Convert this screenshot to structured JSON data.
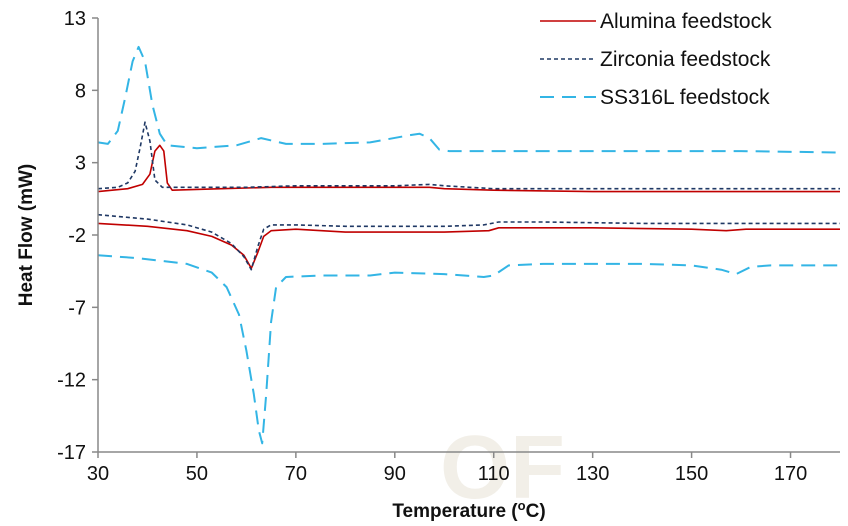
{
  "chart_data": {
    "type": "line",
    "title": "",
    "xlabel": "Temperature (°C)",
    "xlabel_main": "Temperature (",
    "xlabel_sup": "o",
    "xlabel_end": "C)",
    "ylabel": "Heat Flow (mW)",
    "xlim": [
      30,
      180
    ],
    "ylim": [
      -17,
      13
    ],
    "x_ticks": [
      30,
      50,
      70,
      90,
      110,
      130,
      150,
      170
    ],
    "y_ticks": [
      13,
      8,
      3,
      -2,
      -7,
      -12,
      -17
    ],
    "grid": false,
    "legend_position": "top-right",
    "watermark_text": "OF",
    "series": [
      {
        "name": "Alumina feedstock",
        "color": "#c00000",
        "dash": "solid",
        "segments": [
          [
            [
              30,
              1.0
            ],
            [
              36,
              1.2
            ],
            [
              39,
              1.5
            ],
            [
              40.5,
              2.2
            ],
            [
              41.5,
              3.8
            ],
            [
              42.5,
              4.2
            ],
            [
              43.3,
              3.8
            ],
            [
              44,
              1.6
            ],
            [
              45,
              1.1
            ],
            [
              55,
              1.2
            ],
            [
              65,
              1.3
            ],
            [
              75,
              1.3
            ],
            [
              90,
              1.3
            ],
            [
              97,
              1.3
            ],
            [
              100,
              1.2
            ],
            [
              110,
              1.1
            ],
            [
              130,
              1.0
            ],
            [
              150,
              1.0
            ],
            [
              180,
              1.0
            ]
          ],
          [
            [
              30,
              -1.2
            ],
            [
              40,
              -1.4
            ],
            [
              48,
              -1.7
            ],
            [
              53,
              -2.1
            ],
            [
              57,
              -2.7
            ],
            [
              59.5,
              -3.4
            ],
            [
              61,
              -4.3
            ],
            [
              62.3,
              -3.2
            ],
            [
              63.5,
              -2.1
            ],
            [
              65,
              -1.7
            ],
            [
              70,
              -1.6
            ],
            [
              80,
              -1.8
            ],
            [
              90,
              -1.8
            ],
            [
              100,
              -1.8
            ],
            [
              109,
              -1.7
            ],
            [
              111,
              -1.5
            ],
            [
              120,
              -1.5
            ],
            [
              130,
              -1.5
            ],
            [
              150,
              -1.6
            ],
            [
              157,
              -1.7
            ],
            [
              161,
              -1.6
            ],
            [
              165,
              -1.6
            ],
            [
              180,
              -1.6
            ]
          ]
        ]
      },
      {
        "name": "Zirconia feedstock",
        "color": "#1f3864",
        "dash": "dotted",
        "segments": [
          [
            [
              30,
              1.2
            ],
            [
              34,
              1.3
            ],
            [
              36,
              1.6
            ],
            [
              37.5,
              2.4
            ],
            [
              38.5,
              4.0
            ],
            [
              39.5,
              5.8
            ],
            [
              40.5,
              4.5
            ],
            [
              41.5,
              1.8
            ],
            [
              43,
              1.3
            ],
            [
              50,
              1.3
            ],
            [
              60,
              1.3
            ],
            [
              70,
              1.4
            ],
            [
              80,
              1.4
            ],
            [
              90,
              1.4
            ],
            [
              97,
              1.5
            ],
            [
              100,
              1.4
            ],
            [
              110,
              1.2
            ],
            [
              130,
              1.2
            ],
            [
              150,
              1.2
            ],
            [
              180,
              1.2
            ]
          ],
          [
            [
              30,
              -0.6
            ],
            [
              40,
              -0.9
            ],
            [
              48,
              -1.3
            ],
            [
              53,
              -1.8
            ],
            [
              57,
              -2.6
            ],
            [
              59.5,
              -3.5
            ],
            [
              61,
              -4.4
            ],
            [
              62.3,
              -2.8
            ],
            [
              63.5,
              -1.6
            ],
            [
              65,
              -1.3
            ],
            [
              70,
              -1.3
            ],
            [
              80,
              -1.4
            ],
            [
              90,
              -1.4
            ],
            [
              100,
              -1.4
            ],
            [
              108,
              -1.3
            ],
            [
              111,
              -1.1
            ],
            [
              120,
              -1.1
            ],
            [
              140,
              -1.2
            ],
            [
              150,
              -1.2
            ],
            [
              160,
              -1.2
            ],
            [
              180,
              -1.2
            ]
          ]
        ]
      },
      {
        "name": "SS316L feedstock",
        "color": "#33b5e5",
        "dash": "dashed",
        "segments": [
          [
            [
              30,
              4.4
            ],
            [
              32,
              4.3
            ],
            [
              34,
              5.2
            ],
            [
              35.5,
              7.5
            ],
            [
              37,
              10.0
            ],
            [
              38.2,
              11.0
            ],
            [
              39.5,
              10.0
            ],
            [
              41,
              7.0
            ],
            [
              42.5,
              5.0
            ],
            [
              44,
              4.2
            ],
            [
              50,
              4.0
            ],
            [
              58,
              4.2
            ],
            [
              63,
              4.7
            ],
            [
              68,
              4.3
            ],
            [
              75,
              4.3
            ],
            [
              85,
              4.4
            ],
            [
              93,
              4.9
            ],
            [
              95,
              5.0
            ],
            [
              97,
              4.7
            ],
            [
              99,
              3.9
            ],
            [
              101,
              3.8
            ],
            [
              120,
              3.8
            ],
            [
              140,
              3.8
            ],
            [
              160,
              3.8
            ],
            [
              180,
              3.7
            ]
          ],
          [
            [
              30,
              -3.4
            ],
            [
              38,
              -3.6
            ],
            [
              48,
              -4.0
            ],
            [
              53,
              -4.6
            ],
            [
              56,
              -5.6
            ],
            [
              58.5,
              -7.5
            ],
            [
              60,
              -10.0
            ],
            [
              61.5,
              -13.0
            ],
            [
              62.5,
              -15.5
            ],
            [
              63.2,
              -16.4
            ],
            [
              64,
              -13.0
            ],
            [
              65,
              -8.0
            ],
            [
              66,
              -5.6
            ],
            [
              68,
              -4.9
            ],
            [
              75,
              -4.8
            ],
            [
              85,
              -4.8
            ],
            [
              90,
              -4.6
            ],
            [
              100,
              -4.7
            ],
            [
              108,
              -4.9
            ],
            [
              110,
              -4.8
            ],
            [
              113,
              -4.1
            ],
            [
              120,
              -4.0
            ],
            [
              140,
              -4.0
            ],
            [
              150,
              -4.1
            ],
            [
              156,
              -4.4
            ],
            [
              159,
              -4.7
            ],
            [
              162,
              -4.2
            ],
            [
              166,
              -4.1
            ],
            [
              180,
              -4.1
            ]
          ]
        ]
      }
    ]
  }
}
